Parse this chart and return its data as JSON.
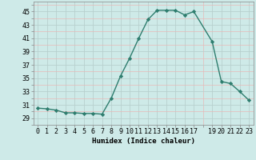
{
  "x": [
    0,
    1,
    2,
    3,
    4,
    5,
    6,
    7,
    8,
    9,
    10,
    11,
    12,
    13,
    14,
    15,
    16,
    17,
    19,
    20,
    21,
    22,
    23
  ],
  "y": [
    30.5,
    30.4,
    30.2,
    29.8,
    29.8,
    29.7,
    29.7,
    29.6,
    32.0,
    35.3,
    38.0,
    41.0,
    43.8,
    45.2,
    45.2,
    45.2,
    44.5,
    45.0,
    40.5,
    34.5,
    34.2,
    33.0,
    31.7
  ],
  "xticks": [
    0,
    1,
    2,
    3,
    4,
    5,
    6,
    7,
    8,
    9,
    10,
    11,
    12,
    13,
    14,
    15,
    16,
    17,
    19,
    20,
    21,
    22,
    23
  ],
  "xtick_labels": [
    "0",
    "1",
    "2",
    "3",
    "4",
    "5",
    "6",
    "7",
    "8",
    "9",
    "10",
    "11",
    "12",
    "13",
    "14",
    "15",
    "16",
    "17",
    "19",
    "20",
    "21",
    "22",
    "23"
  ],
  "yticks": [
    29,
    31,
    33,
    35,
    37,
    39,
    41,
    43,
    45
  ],
  "ylim": [
    28.0,
    46.5
  ],
  "xlim": [
    -0.5,
    23.5
  ],
  "xlabel": "Humidex (Indice chaleur)",
  "line_color": "#2e7d6e",
  "marker": "D",
  "marker_size": 2.2,
  "bg_color": "#ceeae8",
  "grid_major_color": "#b8d0ce",
  "grid_minor_color": "#e8b8b8",
  "label_fontsize": 6.5,
  "tick_fontsize": 6.0
}
